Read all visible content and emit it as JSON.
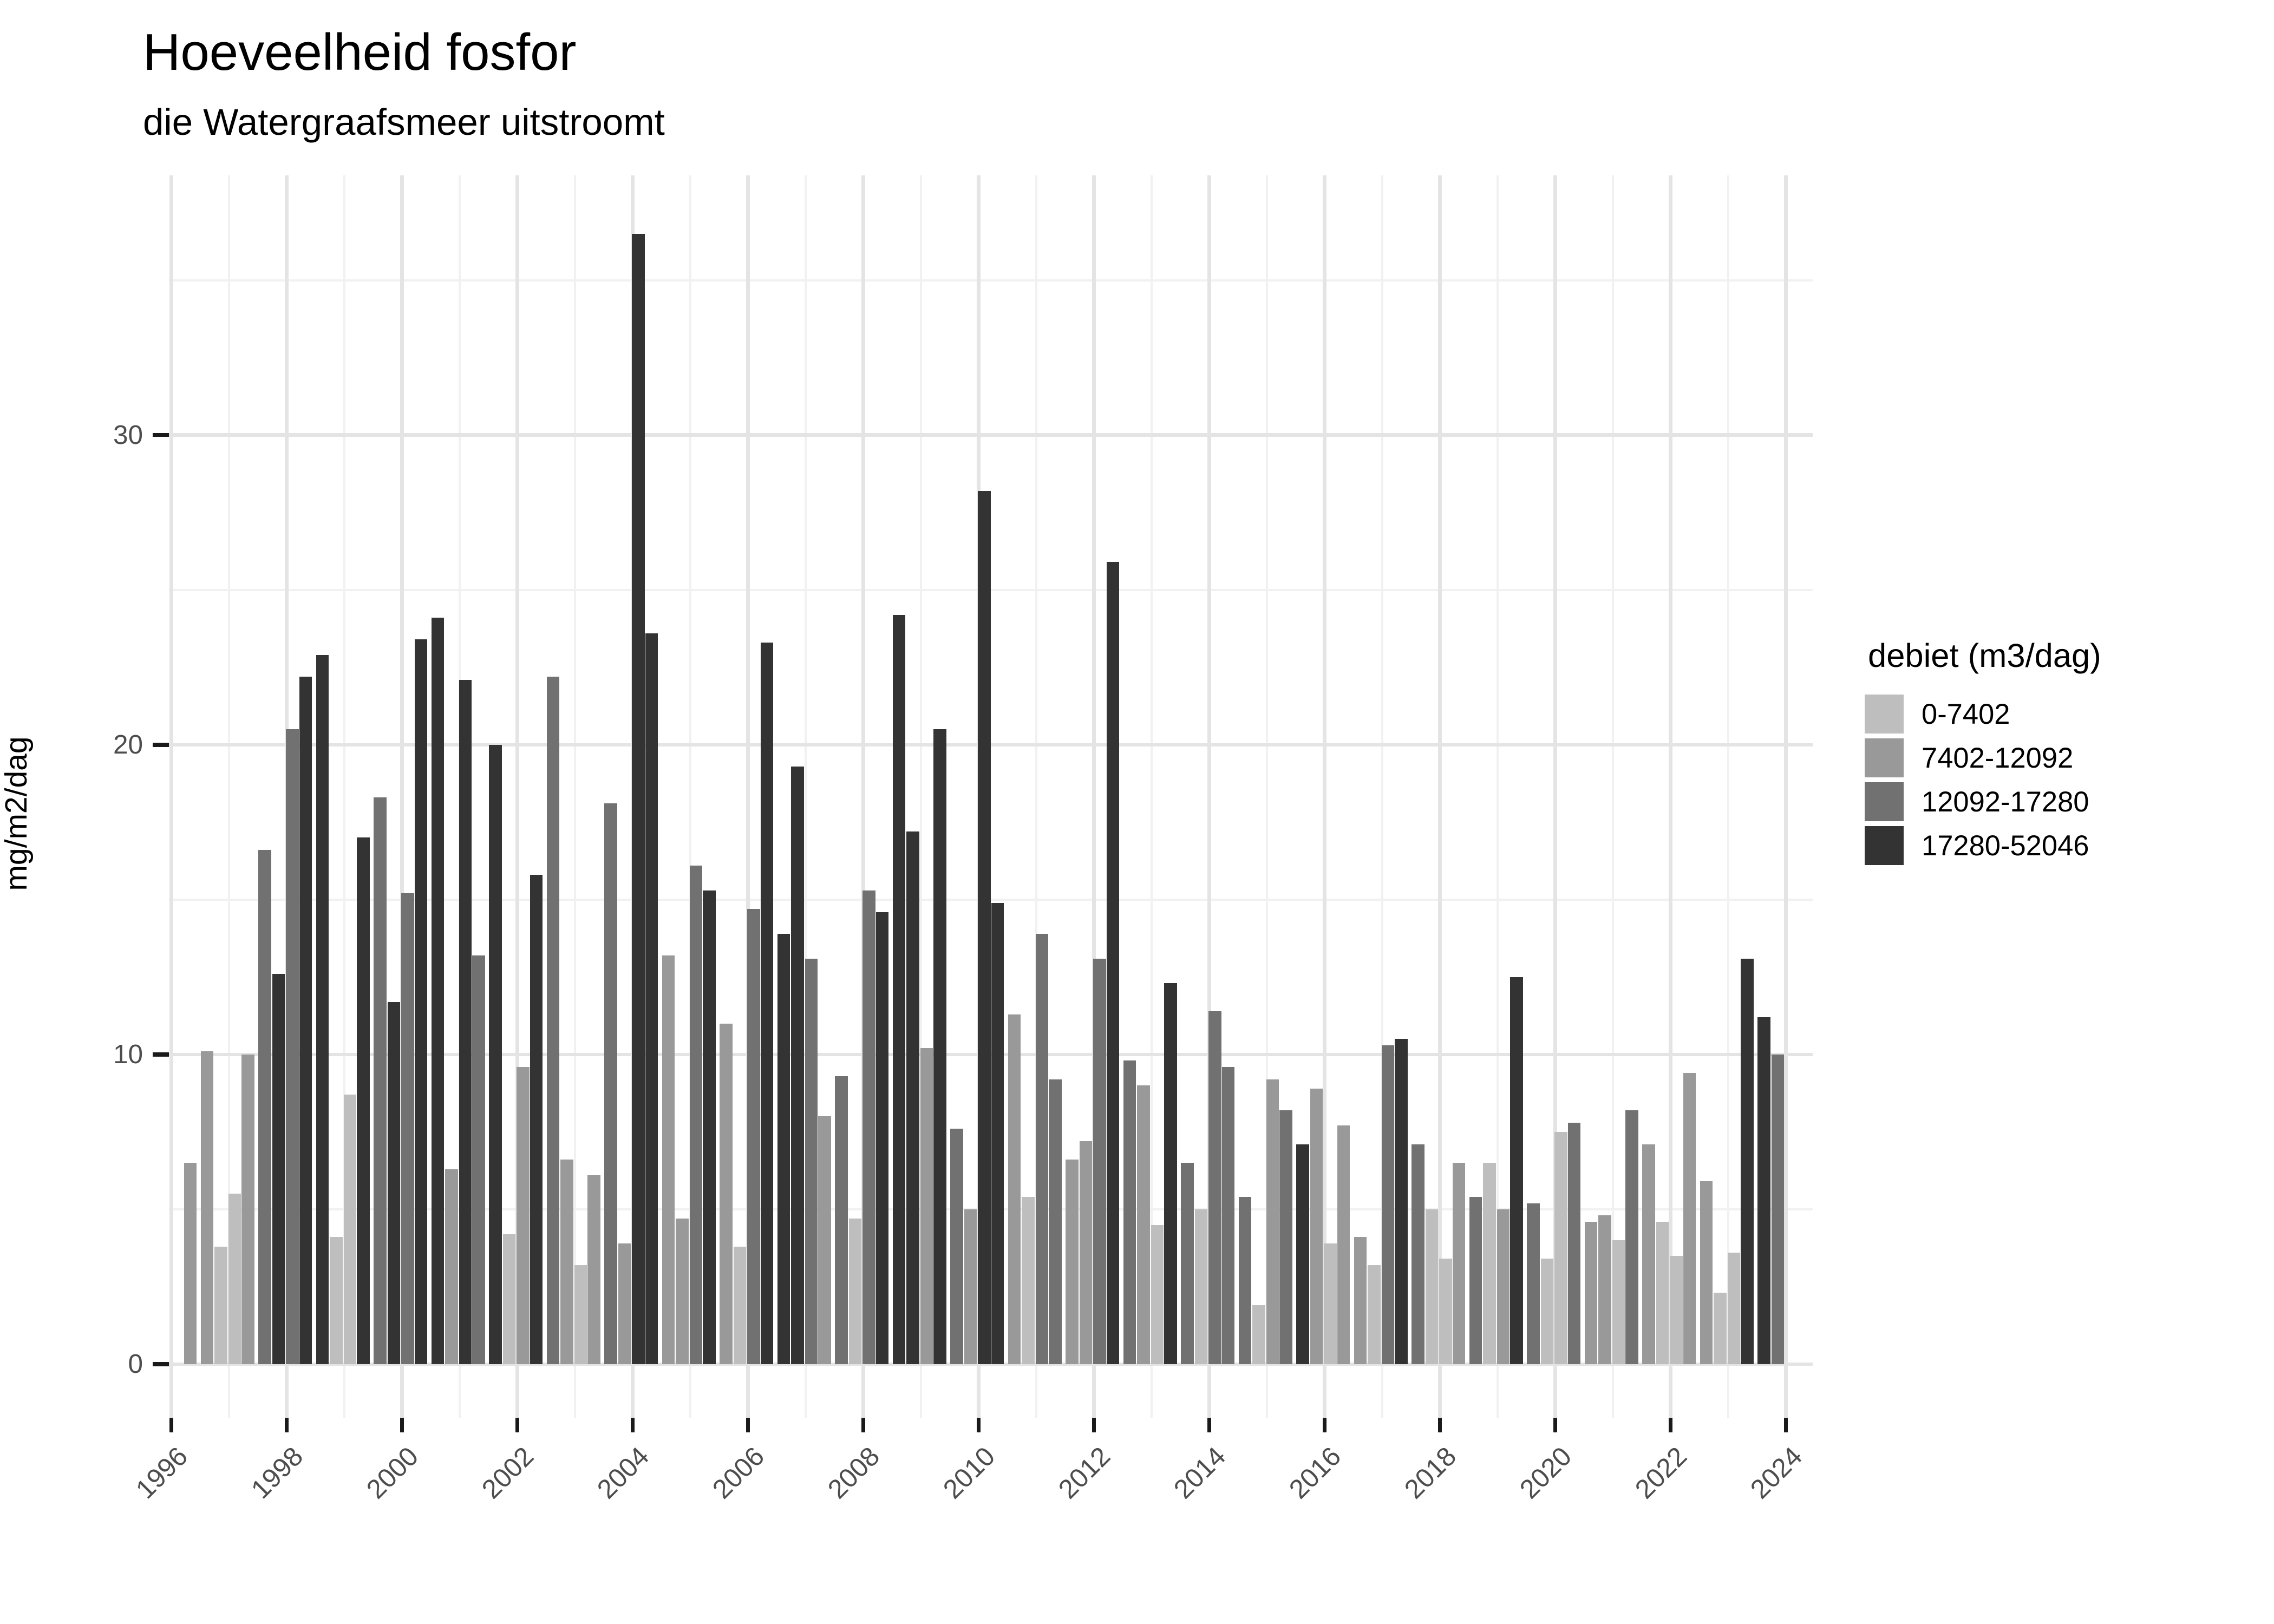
{
  "chart_data": {
    "type": "bar",
    "title": "Hoeveelheid fosfor",
    "subtitle": "die Watergraafsmeer uitstroomt",
    "ylabel": "mg/m2/dag",
    "xlabel": "",
    "legend_title": "debiet (m3/dag)",
    "legend_position": "right",
    "grid": "on",
    "ylim": [
      0,
      36.5
    ],
    "yticks": [
      0,
      10,
      20,
      30
    ],
    "yticks_minor": [
      5,
      15,
      25,
      35
    ],
    "xticks": [
      1996,
      1998,
      2000,
      2002,
      2004,
      2006,
      2008,
      2010,
      2012,
      2014,
      2016,
      2018,
      2020,
      2022,
      2024
    ],
    "xticks_minor": [
      1997,
      1999,
      2001,
      2003,
      2005,
      2007,
      2009,
      2011,
      2013,
      2015,
      2017,
      2019,
      2021,
      2023
    ],
    "categories": [
      {
        "label": "0-7402",
        "color": "#BEBEBE"
      },
      {
        "label": "7402-12092",
        "color": "#999999"
      },
      {
        "label": "12092-17280",
        "color": "#717171"
      },
      {
        "label": "17280-52046",
        "color": "#333333"
      }
    ],
    "bar_note": "bars = [year, quarter(1-4), value mg/m2/dag, category index]",
    "bars": [
      [
        1996,
        2,
        6.5,
        1
      ],
      [
        1996,
        3,
        10.1,
        1
      ],
      [
        1996,
        4,
        3.8,
        0
      ],
      [
        1997,
        1,
        5.5,
        0
      ],
      [
        1997,
        2,
        10.0,
        1
      ],
      [
        1997,
        3,
        16.6,
        2
      ],
      [
        1997,
        4,
        12.6,
        3
      ],
      [
        1998,
        1,
        20.5,
        2
      ],
      [
        1998,
        2,
        22.2,
        3
      ],
      [
        1998,
        3,
        22.9,
        3
      ],
      [
        1998,
        4,
        4.1,
        0
      ],
      [
        1999,
        1,
        8.7,
        0
      ],
      [
        1999,
        2,
        17.0,
        3
      ],
      [
        1999,
        3,
        18.3,
        2
      ],
      [
        1999,
        4,
        11.7,
        3
      ],
      [
        2000,
        1,
        15.2,
        2
      ],
      [
        2000,
        2,
        23.4,
        3
      ],
      [
        2000,
        3,
        24.1,
        3
      ],
      [
        2000,
        4,
        6.3,
        1
      ],
      [
        2001,
        1,
        22.1,
        3
      ],
      [
        2001,
        2,
        13.2,
        2
      ],
      [
        2001,
        3,
        20.0,
        3
      ],
      [
        2001,
        4,
        4.2,
        0
      ],
      [
        2002,
        1,
        9.6,
        1
      ],
      [
        2002,
        2,
        15.8,
        3
      ],
      [
        2002,
        3,
        22.2,
        2
      ],
      [
        2002,
        4,
        6.6,
        1
      ],
      [
        2003,
        1,
        3.2,
        0
      ],
      [
        2003,
        2,
        6.1,
        1
      ],
      [
        2003,
        3,
        18.1,
        2
      ],
      [
        2003,
        4,
        3.9,
        1
      ],
      [
        2004,
        1,
        36.5,
        3
      ],
      [
        2004,
        2,
        23.6,
        3
      ],
      [
        2004,
        3,
        13.2,
        1
      ],
      [
        2004,
        4,
        4.7,
        1
      ],
      [
        2005,
        1,
        16.1,
        2
      ],
      [
        2005,
        2,
        15.3,
        3
      ],
      [
        2005,
        3,
        11.0,
        1
      ],
      [
        2005,
        4,
        3.8,
        0
      ],
      [
        2006,
        1,
        14.7,
        2
      ],
      [
        2006,
        2,
        23.3,
        3
      ],
      [
        2006,
        3,
        13.9,
        3
      ],
      [
        2006,
        4,
        19.3,
        3
      ],
      [
        2007,
        1,
        13.1,
        2
      ],
      [
        2007,
        2,
        8.0,
        1
      ],
      [
        2007,
        3,
        9.3,
        2
      ],
      [
        2007,
        4,
        4.7,
        0
      ],
      [
        2008,
        1,
        15.3,
        2
      ],
      [
        2008,
        2,
        14.6,
        3
      ],
      [
        2008,
        3,
        24.2,
        3
      ],
      [
        2008,
        4,
        17.2,
        3
      ],
      [
        2009,
        1,
        10.2,
        1
      ],
      [
        2009,
        2,
        20.5,
        3
      ],
      [
        2009,
        3,
        7.6,
        2
      ],
      [
        2009,
        4,
        5.0,
        1
      ],
      [
        2010,
        1,
        28.2,
        3
      ],
      [
        2010,
        2,
        14.9,
        3
      ],
      [
        2010,
        3,
        11.3,
        1
      ],
      [
        2010,
        4,
        5.4,
        0
      ],
      [
        2011,
        1,
        13.9,
        2
      ],
      [
        2011,
        2,
        9.2,
        2
      ],
      [
        2011,
        3,
        6.6,
        1
      ],
      [
        2011,
        4,
        7.2,
        1
      ],
      [
        2012,
        1,
        13.1,
        2
      ],
      [
        2012,
        2,
        25.9,
        3
      ],
      [
        2012,
        3,
        9.8,
        2
      ],
      [
        2012,
        4,
        9.0,
        1
      ],
      [
        2013,
        1,
        4.5,
        0
      ],
      [
        2013,
        2,
        12.3,
        3
      ],
      [
        2013,
        3,
        6.5,
        2
      ],
      [
        2013,
        4,
        5.0,
        0
      ],
      [
        2014,
        1,
        11.4,
        2
      ],
      [
        2014,
        2,
        9.6,
        2
      ],
      [
        2014,
        3,
        5.4,
        2
      ],
      [
        2014,
        4,
        1.9,
        0
      ],
      [
        2015,
        1,
        9.2,
        1
      ],
      [
        2015,
        2,
        8.2,
        2
      ],
      [
        2015,
        3,
        7.1,
        3
      ],
      [
        2015,
        4,
        8.9,
        1
      ],
      [
        2016,
        1,
        3.9,
        0
      ],
      [
        2016,
        2,
        7.7,
        1
      ],
      [
        2016,
        3,
        4.1,
        1
      ],
      [
        2016,
        4,
        3.2,
        0
      ],
      [
        2017,
        1,
        10.3,
        2
      ],
      [
        2017,
        2,
        10.5,
        3
      ],
      [
        2017,
        3,
        7.1,
        2
      ],
      [
        2017,
        4,
        5.0,
        0
      ],
      [
        2018,
        1,
        3.4,
        0
      ],
      [
        2018,
        2,
        6.5,
        1
      ],
      [
        2018,
        3,
        5.4,
        2
      ],
      [
        2018,
        4,
        6.5,
        0
      ],
      [
        2019,
        1,
        5.0,
        1
      ],
      [
        2019,
        2,
        12.5,
        3
      ],
      [
        2019,
        3,
        5.2,
        2
      ],
      [
        2019,
        4,
        3.4,
        0
      ],
      [
        2020,
        1,
        7.5,
        0
      ],
      [
        2020,
        2,
        7.8,
        2
      ],
      [
        2020,
        3,
        4.6,
        1
      ],
      [
        2020,
        4,
        4.8,
        1
      ],
      [
        2021,
        1,
        4.0,
        0
      ],
      [
        2021,
        2,
        8.2,
        2
      ],
      [
        2021,
        3,
        7.1,
        1
      ],
      [
        2021,
        4,
        4.6,
        0
      ],
      [
        2022,
        1,
        3.5,
        0
      ],
      [
        2022,
        2,
        9.4,
        1
      ],
      [
        2022,
        3,
        5.9,
        1
      ],
      [
        2022,
        4,
        2.3,
        0
      ],
      [
        2023,
        1,
        3.6,
        0
      ],
      [
        2023,
        2,
        13.1,
        3
      ],
      [
        2023,
        3,
        11.2,
        3
      ],
      [
        2023,
        4,
        10.0,
        2
      ]
    ]
  }
}
